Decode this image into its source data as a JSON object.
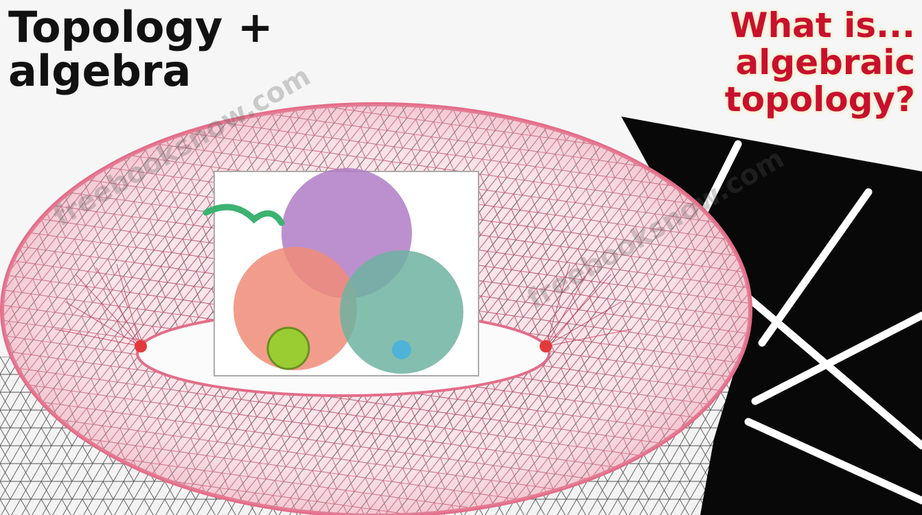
{
  "titles": {
    "left_line1": "Topology +",
    "left_line2": "algebra",
    "right_line1": "What is...",
    "right_line2": "algebraic",
    "right_line3": "topology?"
  },
  "colors": {
    "mesh_pink": "#f2a9b8",
    "mesh_dark": "#333333",
    "title_red": "#c8102e",
    "title_glow": "#ffe08a",
    "venn_purple": "#b07cc6",
    "venn_salmon": "#f08c78",
    "venn_teal": "#6fb3a0",
    "venn_green": "#9acd32"
  },
  "icons": {
    "torus": "triangulated-torus-mesh",
    "venn": "three-circle-venn-diagram",
    "grid": "black-square-grid"
  }
}
